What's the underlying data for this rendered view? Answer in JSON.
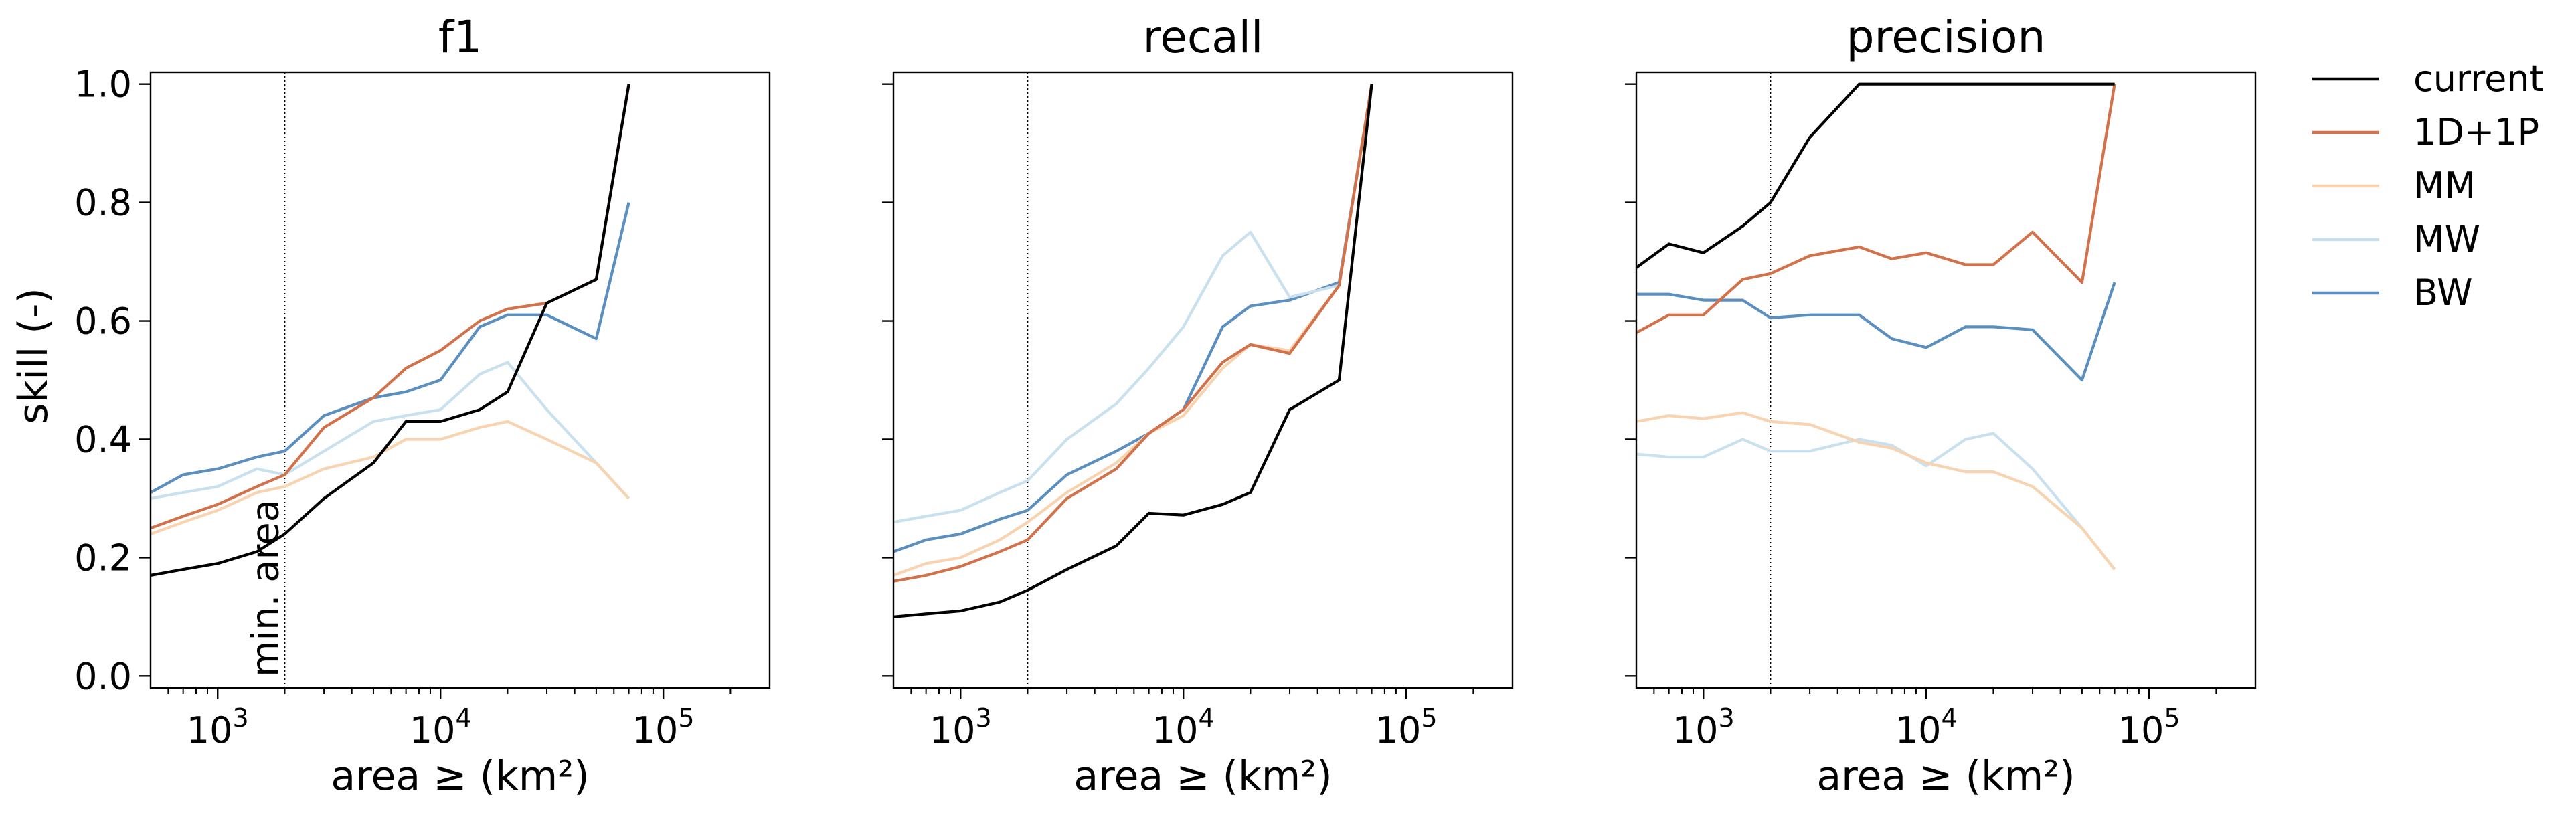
{
  "figure": {
    "ylabel": "skill (-)"
  },
  "legend": {
    "placement": "upper-right-outside",
    "entries": [
      {
        "name": "current",
        "color": "#000000"
      },
      {
        "name": "1D+1P",
        "color": "#d2714a"
      },
      {
        "name": "MM",
        "color": "#f8d3b0"
      },
      {
        "name": "MW",
        "color": "#c9e1ef"
      },
      {
        "name": "BW",
        "color": "#5a8fc0"
      }
    ]
  },
  "annotation": {
    "text": "min. area",
    "x": 2000
  },
  "chart_data": [
    {
      "type": "line",
      "title": "f1",
      "xlabel": "area ≥ (km²)",
      "ylabel": "skill (-)",
      "xscale": "log",
      "xlim": [
        500,
        300000
      ],
      "ylim": [
        -0.02,
        1.02
      ],
      "xticks": [
        1000,
        10000,
        100000
      ],
      "xtick_labels": [
        {
          "base": "10",
          "exp": "3"
        },
        {
          "base": "10",
          "exp": "4"
        },
        {
          "base": "10",
          "exp": "5"
        }
      ],
      "yticks": [
        0.0,
        0.2,
        0.4,
        0.6,
        0.8,
        1.0
      ],
      "ytick_labels": [
        "0.0",
        "0.2",
        "0.4",
        "0.6",
        "0.8",
        "1.0"
      ],
      "vline": 2000,
      "x": [
        500,
        700,
        1000,
        1500,
        2000,
        3000,
        5000,
        7000,
        10000,
        15000,
        20000,
        30000,
        50000,
        70000
      ],
      "series": [
        {
          "name": "current",
          "values": [
            0.17,
            0.18,
            0.19,
            0.21,
            0.24,
            0.3,
            0.36,
            0.43,
            0.43,
            0.45,
            0.48,
            0.63,
            0.67,
            1.0
          ]
        },
        {
          "name": "1D+1P",
          "values": [
            0.25,
            0.27,
            0.29,
            0.32,
            0.34,
            0.42,
            0.47,
            0.52,
            0.55,
            0.6,
            0.62,
            0.63,
            0.67,
            1.0
          ]
        },
        {
          "name": "MM",
          "values": [
            0.24,
            0.26,
            0.28,
            0.31,
            0.32,
            0.35,
            0.37,
            0.4,
            0.4,
            0.42,
            0.43,
            0.4,
            0.36,
            0.3
          ]
        },
        {
          "name": "MW",
          "values": [
            0.3,
            0.31,
            0.32,
            0.35,
            0.34,
            0.38,
            0.43,
            0.44,
            0.45,
            0.51,
            0.53,
            0.45,
            0.36,
            0.3
          ]
        },
        {
          "name": "BW",
          "values": [
            0.31,
            0.34,
            0.35,
            0.37,
            0.38,
            0.44,
            0.47,
            0.48,
            0.5,
            0.59,
            0.61,
            0.61,
            0.57,
            0.8
          ]
        }
      ]
    },
    {
      "type": "line",
      "title": "recall",
      "xlabel": "area ≥ (km²)",
      "ylabel": "",
      "xscale": "log",
      "xlim": [
        500,
        300000
      ],
      "ylim": [
        -0.02,
        1.02
      ],
      "xticks": [
        1000,
        10000,
        100000
      ],
      "xtick_labels": [
        {
          "base": "10",
          "exp": "3"
        },
        {
          "base": "10",
          "exp": "4"
        },
        {
          "base": "10",
          "exp": "5"
        }
      ],
      "yticks": [
        0.0,
        0.2,
        0.4,
        0.6,
        0.8,
        1.0
      ],
      "ytick_labels": [],
      "vline": 2000,
      "x": [
        500,
        700,
        1000,
        1500,
        2000,
        3000,
        5000,
        7000,
        10000,
        15000,
        20000,
        30000,
        50000,
        70000
      ],
      "series": [
        {
          "name": "current",
          "values": [
            0.1,
            0.105,
            0.11,
            0.125,
            0.145,
            0.18,
            0.22,
            0.275,
            0.272,
            0.29,
            0.31,
            0.45,
            0.5,
            1.0
          ]
        },
        {
          "name": "1D+1P",
          "values": [
            0.16,
            0.17,
            0.185,
            0.21,
            0.23,
            0.3,
            0.35,
            0.41,
            0.45,
            0.53,
            0.56,
            0.545,
            0.66,
            1.0
          ]
        },
        {
          "name": "MM",
          "values": [
            0.17,
            0.19,
            0.2,
            0.23,
            0.26,
            0.31,
            0.36,
            0.41,
            0.44,
            0.52,
            0.56,
            0.55,
            0.66,
            1.0
          ]
        },
        {
          "name": "MW",
          "values": [
            0.26,
            0.27,
            0.28,
            0.31,
            0.33,
            0.4,
            0.46,
            0.52,
            0.59,
            0.71,
            0.75,
            0.64,
            0.66,
            1.0
          ]
        },
        {
          "name": "BW",
          "values": [
            0.21,
            0.23,
            0.24,
            0.265,
            0.28,
            0.34,
            0.38,
            0.41,
            0.45,
            0.59,
            0.625,
            0.635,
            0.665,
            1.0
          ]
        }
      ]
    },
    {
      "type": "line",
      "title": "precision",
      "xlabel": "area ≥ (km²)",
      "ylabel": "",
      "xscale": "log",
      "xlim": [
        500,
        300000
      ],
      "ylim": [
        -0.02,
        1.02
      ],
      "xticks": [
        1000,
        10000,
        100000
      ],
      "xtick_labels": [
        {
          "base": "10",
          "exp": "3"
        },
        {
          "base": "10",
          "exp": "4"
        },
        {
          "base": "10",
          "exp": "5"
        }
      ],
      "yticks": [
        0.0,
        0.2,
        0.4,
        0.6,
        0.8,
        1.0
      ],
      "ytick_labels": [],
      "vline": 2000,
      "x": [
        500,
        700,
        1000,
        1500,
        2000,
        3000,
        5000,
        7000,
        10000,
        15000,
        20000,
        30000,
        50000,
        70000
      ],
      "series": [
        {
          "name": "current",
          "values": [
            0.69,
            0.73,
            0.715,
            0.76,
            0.8,
            0.91,
            1.0,
            1.0,
            1.0,
            1.0,
            1.0,
            1.0,
            1.0,
            1.0
          ]
        },
        {
          "name": "1D+1P",
          "values": [
            0.58,
            0.61,
            0.61,
            0.67,
            0.68,
            0.71,
            0.725,
            0.705,
            0.715,
            0.695,
            0.695,
            0.75,
            0.665,
            1.0
          ]
        },
        {
          "name": "MM",
          "values": [
            0.43,
            0.44,
            0.435,
            0.445,
            0.43,
            0.425,
            0.395,
            0.385,
            0.36,
            0.345,
            0.345,
            0.32,
            0.25,
            0.18
          ]
        },
        {
          "name": "MW",
          "values": [
            0.375,
            0.37,
            0.37,
            0.4,
            0.38,
            0.38,
            0.4,
            0.39,
            0.355,
            0.4,
            0.41,
            0.35,
            0.25,
            0.18
          ]
        },
        {
          "name": "BW",
          "values": [
            0.645,
            0.645,
            0.635,
            0.635,
            0.605,
            0.61,
            0.61,
            0.57,
            0.555,
            0.59,
            0.59,
            0.585,
            0.5,
            0.665
          ]
        }
      ]
    }
  ]
}
